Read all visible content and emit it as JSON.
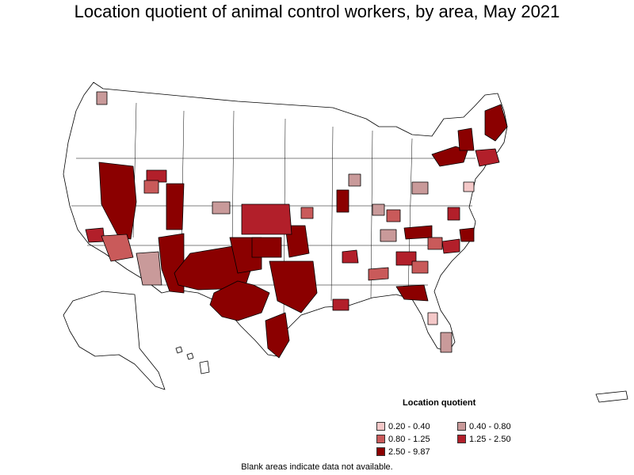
{
  "title": "Location quotient of animal control workers, by area, May 2021",
  "legend": {
    "title": "Location quotient",
    "items": [
      {
        "label": "0.20 - 0.40",
        "color": "#f4c8c8"
      },
      {
        "label": "0.40 - 0.80",
        "color": "#c99a9a"
      },
      {
        "label": "0.80 - 1.25",
        "color": "#c95a5a"
      },
      {
        "label": "1.25 - 2.50",
        "color": "#b21f2a"
      },
      {
        "label": "2.50 - 9.87",
        "color": "#8b0000"
      }
    ]
  },
  "footnote": "Blank areas indicate data not available."
}
